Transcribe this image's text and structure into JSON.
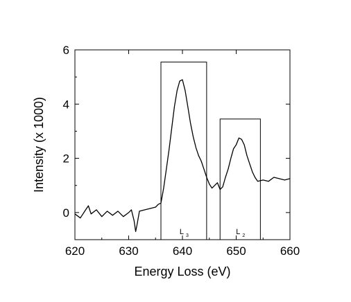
{
  "chart_data": {
    "type": "line",
    "xlabel": "Energy Loss (eV)",
    "ylabel": "Intensity (x 1000)",
    "xlim": [
      620,
      660
    ],
    "ylim": [
      -1,
      6
    ],
    "xticks": [
      620,
      630,
      640,
      650,
      660
    ],
    "yticks": [
      0,
      2,
      4,
      6
    ],
    "grid": false,
    "series": [
      {
        "x": [
          620,
          621,
          622,
          622.5,
          623,
          624,
          625,
          626,
          627,
          628,
          629,
          630,
          630.5,
          631,
          631.3,
          631.6,
          632,
          633,
          634,
          635,
          635.5,
          636,
          636.5,
          637,
          637.5,
          638,
          638.5,
          639,
          639.5,
          640,
          640.5,
          641,
          641.5,
          642,
          642.5,
          643,
          643.5,
          644,
          644.5,
          645,
          645.5,
          646,
          646.5,
          647,
          647.5,
          648,
          648.5,
          649,
          649.5,
          650,
          650.5,
          651,
          651.5,
          652,
          652.5,
          653,
          653.5,
          654,
          655,
          656,
          657,
          658,
          659,
          660
        ],
        "y": [
          -0.05,
          -0.2,
          0.1,
          0.25,
          -0.05,
          0.1,
          -0.15,
          0.05,
          -0.1,
          0.05,
          -0.15,
          0.0,
          0.1,
          -0.3,
          -0.7,
          -0.4,
          0.05,
          0.1,
          0.15,
          0.2,
          0.3,
          0.35,
          0.9,
          1.6,
          2.3,
          3.1,
          3.9,
          4.5,
          4.85,
          4.9,
          4.5,
          3.9,
          3.3,
          2.8,
          2.4,
          2.1,
          1.9,
          1.6,
          1.3,
          1.05,
          0.9,
          1.0,
          1.1,
          0.85,
          0.95,
          1.3,
          1.6,
          2.0,
          2.35,
          2.5,
          2.75,
          2.7,
          2.5,
          2.1,
          1.8,
          1.5,
          1.3,
          1.15,
          1.2,
          1.15,
          1.3,
          1.25,
          1.2,
          1.25
        ]
      }
    ],
    "boxes": [
      {
        "x0": 636,
        "x1": 644.5,
        "y0": -1,
        "y1": 5.55,
        "label": "L",
        "subscript": "3"
      },
      {
        "x0": 647,
        "x1": 654.5,
        "y0": -1,
        "y1": 3.45,
        "label": "L",
        "subscript": "2"
      }
    ]
  }
}
